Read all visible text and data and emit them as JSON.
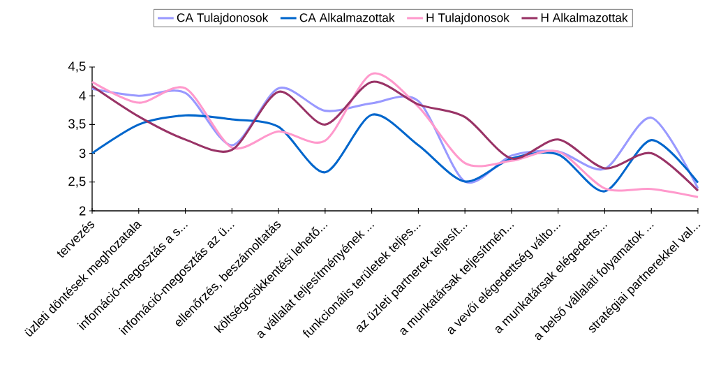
{
  "chart_data": {
    "type": "line",
    "categories": [
      "tervezés",
      "üzleti döntések meghozatala",
      "infomáció-megosztás a s...",
      "infomáció-megosztás az ü...",
      "ellenőrzés, beszámoltatás",
      "költségcsökkentési lehető...",
      "a vállalat teljesítményének ...",
      "funkcionális területek teljes...",
      "az üzleti partnerek teljesít...",
      "a munkatársak teljesítmén...",
      "a vevői elégedettség válto...",
      "a munkatársak elégedetts...",
      "a belső vállalati folyamatok ...",
      "stratégiai partnerekkel val..."
    ],
    "series": [
      {
        "name": "CA Tulajdonosok",
        "color": "#9999ff",
        "values": [
          4.12,
          4.0,
          4.05,
          3.14,
          4.13,
          3.74,
          3.87,
          3.91,
          2.51,
          2.96,
          3.03,
          2.73,
          3.62,
          2.39
        ]
      },
      {
        "name": "CA Alkalmazottak",
        "color": "#0066cc",
        "values": [
          3.0,
          3.5,
          3.66,
          3.59,
          3.46,
          2.67,
          3.67,
          3.14,
          2.51,
          2.91,
          2.98,
          2.34,
          3.23,
          2.49
        ]
      },
      {
        "name": "H Tulajdonosok",
        "color": "#ff99cc",
        "values": [
          4.24,
          3.88,
          4.13,
          3.1,
          3.38,
          3.22,
          4.38,
          3.81,
          2.83,
          2.87,
          3.03,
          2.39,
          2.38,
          2.24
        ]
      },
      {
        "name": "H Alkalmazottak",
        "color": "#993366",
        "values": [
          4.17,
          3.64,
          3.24,
          3.06,
          4.07,
          3.5,
          4.24,
          3.85,
          3.63,
          2.91,
          3.24,
          2.74,
          3.0,
          2.35
        ]
      }
    ],
    "ylim": [
      2,
      4.5
    ],
    "yticks": [
      2,
      {
        "value": 2.5,
        "label": "2,5"
      },
      3,
      {
        "value": 3.5,
        "label": "3,5"
      },
      4,
      {
        "value": 4.5,
        "label": "4,5"
      }
    ],
    "legend": "top",
    "marker": "none",
    "line_style": "solid"
  }
}
